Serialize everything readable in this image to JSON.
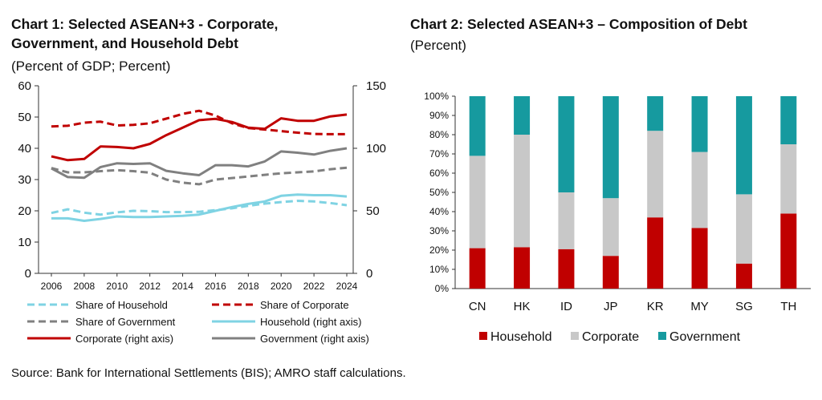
{
  "chart1": {
    "title": "Chart 1: Selected ASEAN+3 - Corporate, Government, and Household Debt",
    "subtitle": "(Percent of GDP; Percent)"
  },
  "chart2": {
    "title": "Chart 2: Selected ASEAN+3 – Composition of Debt",
    "subtitle": "(Percent)"
  },
  "source": "Source: Bank for International Settlements (BIS); AMRO staff calculations.",
  "colors": {
    "household": "#7fd3e3",
    "corporate": "#c00000",
    "government": "#808080",
    "comp_household": "#c00000",
    "comp_corporate": "#c8c8c8",
    "comp_government": "#169a9f"
  },
  "chart_data": [
    {
      "type": "line",
      "title": "Chart 1: Selected ASEAN+3 - Corporate, Government, and Household Debt",
      "x": [
        2006,
        2007,
        2008,
        2009,
        2010,
        2011,
        2012,
        2013,
        2014,
        2015,
        2016,
        2017,
        2018,
        2019,
        2020,
        2021,
        2022,
        2023,
        2024
      ],
      "x_ticks": [
        "2006",
        "2008",
        "2010",
        "2012",
        "2014",
        "2016",
        "2018",
        "2020",
        "2022",
        "2024"
      ],
      "y_left": {
        "ylim": [
          0,
          60
        ],
        "ticks": [
          "0",
          "10",
          "20",
          "30",
          "40",
          "50",
          "60"
        ]
      },
      "y_right": {
        "ylim": [
          0,
          150
        ],
        "ticks": [
          "0",
          "50",
          "100",
          "150"
        ]
      },
      "grid": false,
      "legend_position": "bottom",
      "series": [
        {
          "name": "Share of Household",
          "axis": "left",
          "style": "dashed",
          "color": "#7fd3e3",
          "values": [
            19.3,
            20.5,
            19.4,
            18.8,
            19.5,
            20.0,
            19.9,
            19.6,
            19.6,
            19.7,
            20.2,
            20.8,
            21.6,
            22.3,
            22.8,
            23.2,
            23.0,
            22.5,
            21.8
          ]
        },
        {
          "name": "Share of Corporate",
          "axis": "left",
          "style": "dashed",
          "color": "#c00000",
          "values": [
            47.0,
            47.2,
            48.2,
            48.5,
            47.3,
            47.5,
            48.0,
            49.5,
            51.0,
            52.0,
            50.5,
            48.0,
            46.5,
            46.0,
            45.5,
            45.0,
            44.6,
            44.5,
            44.5
          ]
        },
        {
          "name": "Share of Government",
          "axis": "left",
          "style": "dashed",
          "color": "#808080",
          "values": [
            33.7,
            32.3,
            32.3,
            32.7,
            33.0,
            32.7,
            32.2,
            30.0,
            29.0,
            28.5,
            30.0,
            30.5,
            31.0,
            31.5,
            32.0,
            32.3,
            32.6,
            33.3,
            33.8
          ]
        },
        {
          "name": "Household (right axis)",
          "axis": "right",
          "style": "solid",
          "color": "#7fd3e3",
          "values": [
            44.0,
            44.0,
            42.0,
            43.5,
            45.5,
            45.0,
            45.0,
            45.5,
            46.0,
            47.0,
            50.0,
            53.0,
            55.5,
            57.5,
            62.0,
            63.0,
            62.5,
            62.5,
            61.5
          ]
        },
        {
          "name": "Corporate (right axis)",
          "axis": "right",
          "style": "solid",
          "color": "#c00000",
          "values": [
            93.5,
            90.5,
            91.5,
            101.5,
            101.0,
            100.0,
            103.5,
            110.5,
            116.5,
            122.5,
            123.5,
            121.0,
            116.5,
            115.5,
            124.0,
            122.0,
            122.0,
            125.5,
            127.0
          ]
        },
        {
          "name": "Government (right axis)",
          "axis": "right",
          "style": "solid",
          "color": "#808080",
          "values": [
            84.0,
            77.0,
            76.5,
            85.0,
            88.0,
            87.5,
            88.0,
            82.0,
            80.0,
            78.5,
            86.5,
            86.5,
            85.5,
            89.5,
            97.5,
            96.5,
            95.0,
            98.0,
            100.0
          ]
        }
      ]
    },
    {
      "type": "bar",
      "stacked": true,
      "title": "Chart 2: Selected ASEAN+3 – Composition of Debt",
      "categories": [
        "CN",
        "HK",
        "ID",
        "JP",
        "KR",
        "MY",
        "SG",
        "TH"
      ],
      "ylim": [
        0,
        100
      ],
      "y_ticks": [
        "0%",
        "10%",
        "20%",
        "30%",
        "40%",
        "50%",
        "60%",
        "70%",
        "80%",
        "90%",
        "100%"
      ],
      "grid": false,
      "legend_position": "bottom",
      "series": [
        {
          "name": "Household",
          "color": "#c00000",
          "values": [
            21,
            21.5,
            20.5,
            17,
            37,
            31.5,
            13,
            39
          ]
        },
        {
          "name": "Corporate",
          "color": "#c8c8c8",
          "values": [
            48,
            58.5,
            29.5,
            30,
            45,
            39.5,
            36,
            36
          ]
        },
        {
          "name": "Government",
          "color": "#169a9f",
          "values": [
            31,
            20,
            50,
            53,
            18,
            29,
            51,
            25
          ]
        }
      ]
    }
  ]
}
